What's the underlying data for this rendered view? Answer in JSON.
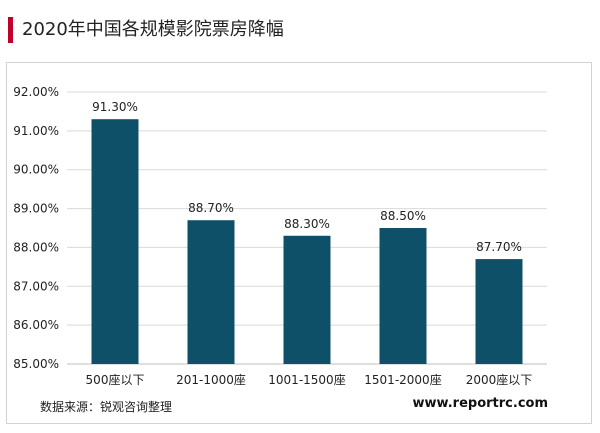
{
  "title": "2020年中国各规模影院票房降幅",
  "source": "数据来源：锐观咨询整理",
  "website": "www.reportrc.com",
  "colors": {
    "accent": "#c0002a",
    "bar": "#0e5068",
    "grid": "#d9d9d9",
    "axis": "#bfbfbf"
  },
  "chart_data": {
    "type": "bar",
    "categories": [
      "500座以下",
      "201-1000座",
      "1001-1500座",
      "1501-2000座",
      "2000座以下"
    ],
    "values": [
      91.3,
      88.7,
      88.3,
      88.5,
      87.7
    ],
    "data_labels": [
      "91.30%",
      "88.70%",
      "88.30%",
      "88.50%",
      "87.70%"
    ],
    "ylim": [
      85.0,
      92.0
    ],
    "yticks": [
      85.0,
      86.0,
      87.0,
      88.0,
      89.0,
      90.0,
      91.0,
      92.0
    ],
    "ytick_labels": [
      "85.00%",
      "86.00%",
      "87.00%",
      "88.00%",
      "89.00%",
      "90.00%",
      "91.00%",
      "92.00%"
    ],
    "grid": true,
    "legend": "none",
    "xlabel": "",
    "ylabel": ""
  }
}
